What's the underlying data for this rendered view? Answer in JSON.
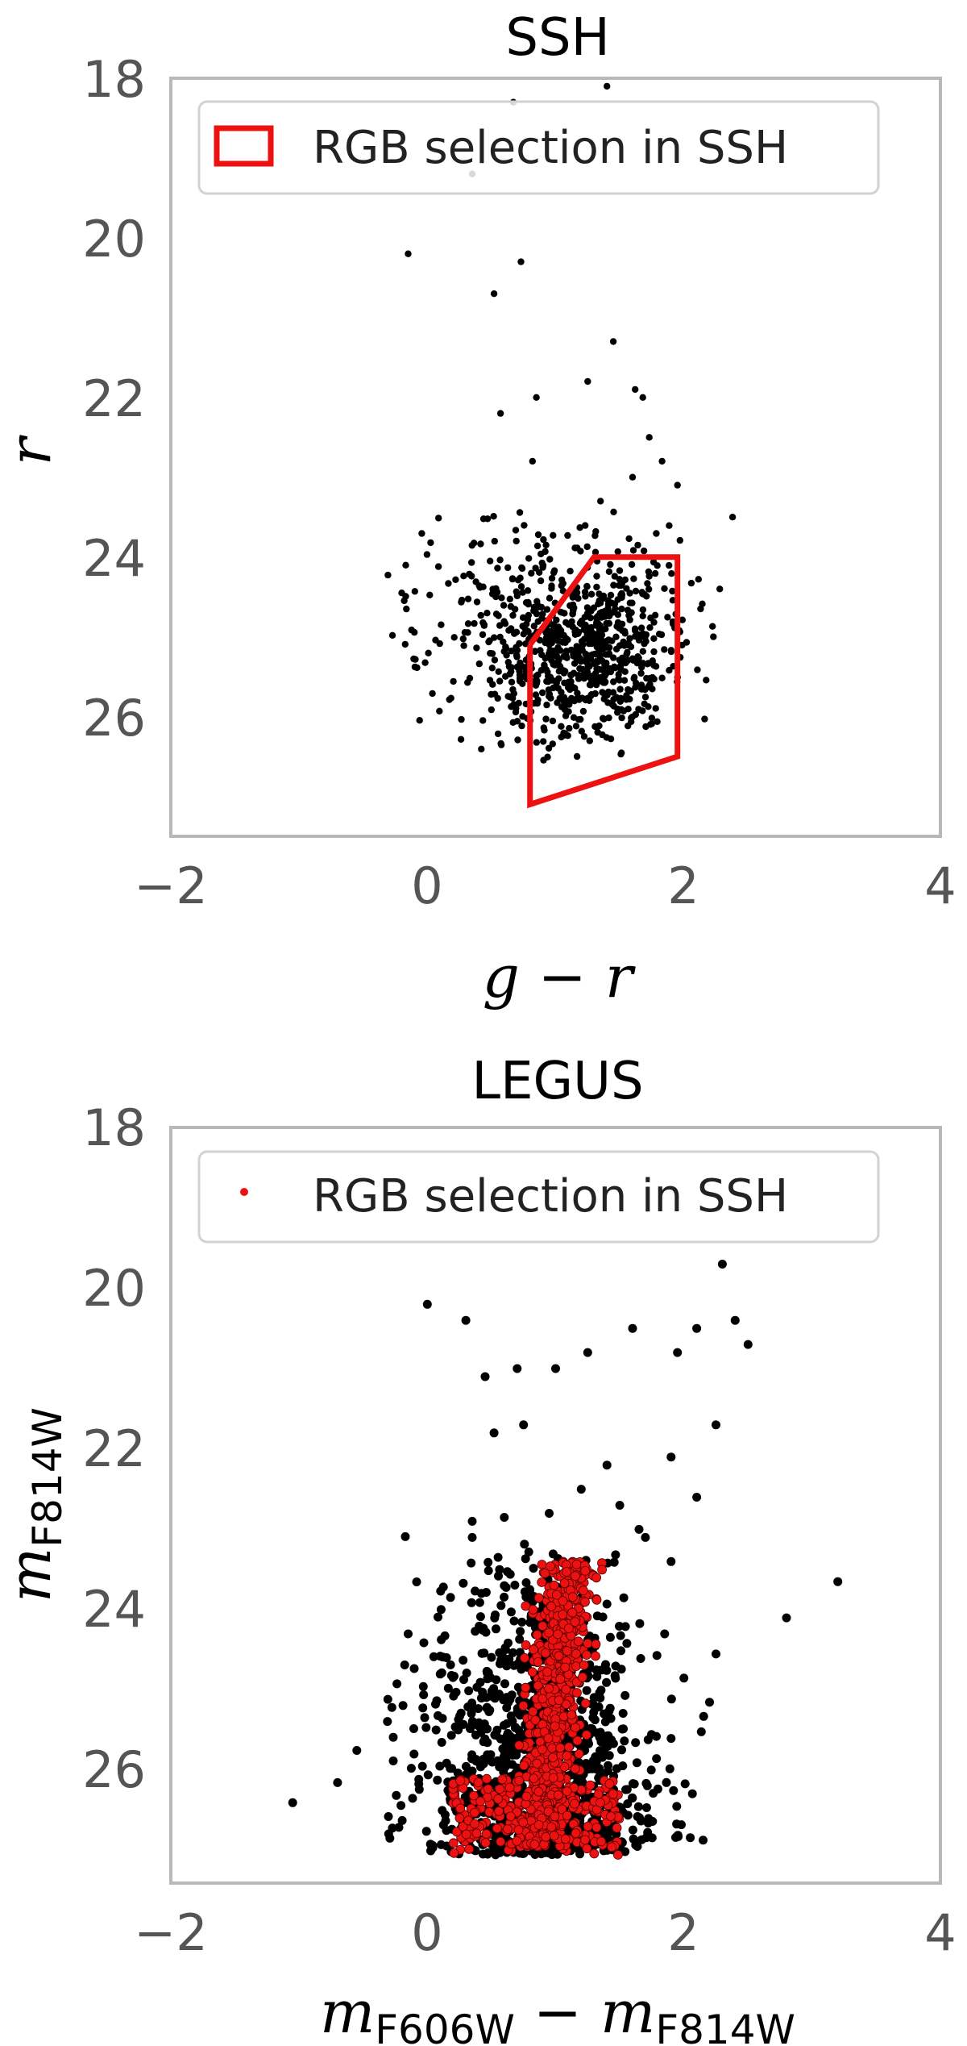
{
  "chart_data": [
    {
      "type": "scatter",
      "title": "SSH",
      "xlabel": "g − r",
      "ylabel": "r",
      "xlim": [
        -2,
        4
      ],
      "ylim": [
        27.5,
        18
      ],
      "y_inverted": true,
      "xticks": [
        "−2",
        "0",
        "2",
        "4"
      ],
      "yticks": [
        "18",
        "20",
        "22",
        "24",
        "26"
      ],
      "grid": false,
      "legend": {
        "position": "top",
        "entries": [
          "RGB selection in SSH"
        ]
      },
      "selection_polygon": {
        "name": "RGB selection in SSH",
        "color": "#ee1111",
        "x": [
          0.8,
          1.3,
          1.95,
          1.95,
          0.8,
          0.8
        ],
        "y": [
          25.1,
          24.0,
          24.0,
          26.5,
          27.1,
          25.1
        ]
      },
      "cloud": {
        "center_x": 1.25,
        "center_y": 25.2,
        "count": 880,
        "color": "#000000"
      },
      "outliers": [
        [
          0.67,
          18.3
        ],
        [
          1.4,
          18.1
        ],
        [
          0.35,
          19.2
        ],
        [
          -0.15,
          20.2
        ],
        [
          0.73,
          20.3
        ],
        [
          0.52,
          20.7
        ],
        [
          1.45,
          21.3
        ],
        [
          1.25,
          21.8
        ],
        [
          0.85,
          22.0
        ],
        [
          1.62,
          21.9
        ],
        [
          1.68,
          22.0
        ],
        [
          0.57,
          22.2
        ],
        [
          1.73,
          22.5
        ],
        [
          1.83,
          22.8
        ],
        [
          0.82,
          22.8
        ],
        [
          1.6,
          23.0
        ],
        [
          1.95,
          23.1
        ],
        [
          1.35,
          23.3
        ],
        [
          2.38,
          23.5
        ],
        [
          -0.2,
          24.45
        ],
        [
          2.28,
          24.4
        ],
        [
          2.23,
          25.0
        ]
      ]
    },
    {
      "type": "scatter",
      "title": "LEGUS",
      "xlabel": "mF606W − mF814W",
      "ylabel": "mF814W",
      "xlim": [
        -2,
        4
      ],
      "ylim": [
        27.4,
        18
      ],
      "y_inverted": true,
      "xticks": [
        "−2",
        "0",
        "2",
        "4"
      ],
      "yticks": [
        "18",
        "20",
        "22",
        "24",
        "26"
      ],
      "grid": false,
      "legend": {
        "position": "top",
        "entries": [
          "RGB selection in SSH"
        ]
      },
      "all_stars": {
        "count": 1300,
        "color": "#000000"
      },
      "rgb_selection": {
        "name": "RGB selection in SSH",
        "count": 950,
        "color": "#ee1111"
      },
      "outliers": [
        [
          2.3,
          19.7
        ],
        [
          2.4,
          20.4
        ],
        [
          2.5,
          20.7
        ],
        [
          0.0,
          20.2
        ],
        [
          0.3,
          20.4
        ],
        [
          1.6,
          20.5
        ],
        [
          2.1,
          20.5
        ],
        [
          0.7,
          21.0
        ],
        [
          1.0,
          21.0
        ],
        [
          0.45,
          21.1
        ],
        [
          1.25,
          20.8
        ],
        [
          1.95,
          20.8
        ],
        [
          0.75,
          21.7
        ],
        [
          0.52,
          21.8
        ],
        [
          2.25,
          21.7
        ],
        [
          1.9,
          22.1
        ],
        [
          1.4,
          22.2
        ],
        [
          1.2,
          22.5
        ],
        [
          2.1,
          22.6
        ],
        [
          1.5,
          22.7
        ],
        [
          0.6,
          22.85
        ],
        [
          0.95,
          22.8
        ],
        [
          0.35,
          22.9
        ],
        [
          1.65,
          23.0
        ],
        [
          1.7,
          23.1
        ],
        [
          1.9,
          23.4
        ],
        [
          3.2,
          23.65
        ],
        [
          2.8,
          24.1
        ],
        [
          1.85,
          24.3
        ],
        [
          2.25,
          24.55
        ],
        [
          2.0,
          24.85
        ],
        [
          2.2,
          25.15
        ],
        [
          1.9,
          25.6
        ],
        [
          -0.55,
          25.75
        ],
        [
          -1.05,
          26.4
        ],
        [
          -0.7,
          26.15
        ],
        [
          0.35,
          23.1
        ],
        [
          0.6,
          23.7
        ],
        [
          0.1,
          24.8
        ],
        [
          -0.15,
          24.3
        ]
      ]
    }
  ]
}
